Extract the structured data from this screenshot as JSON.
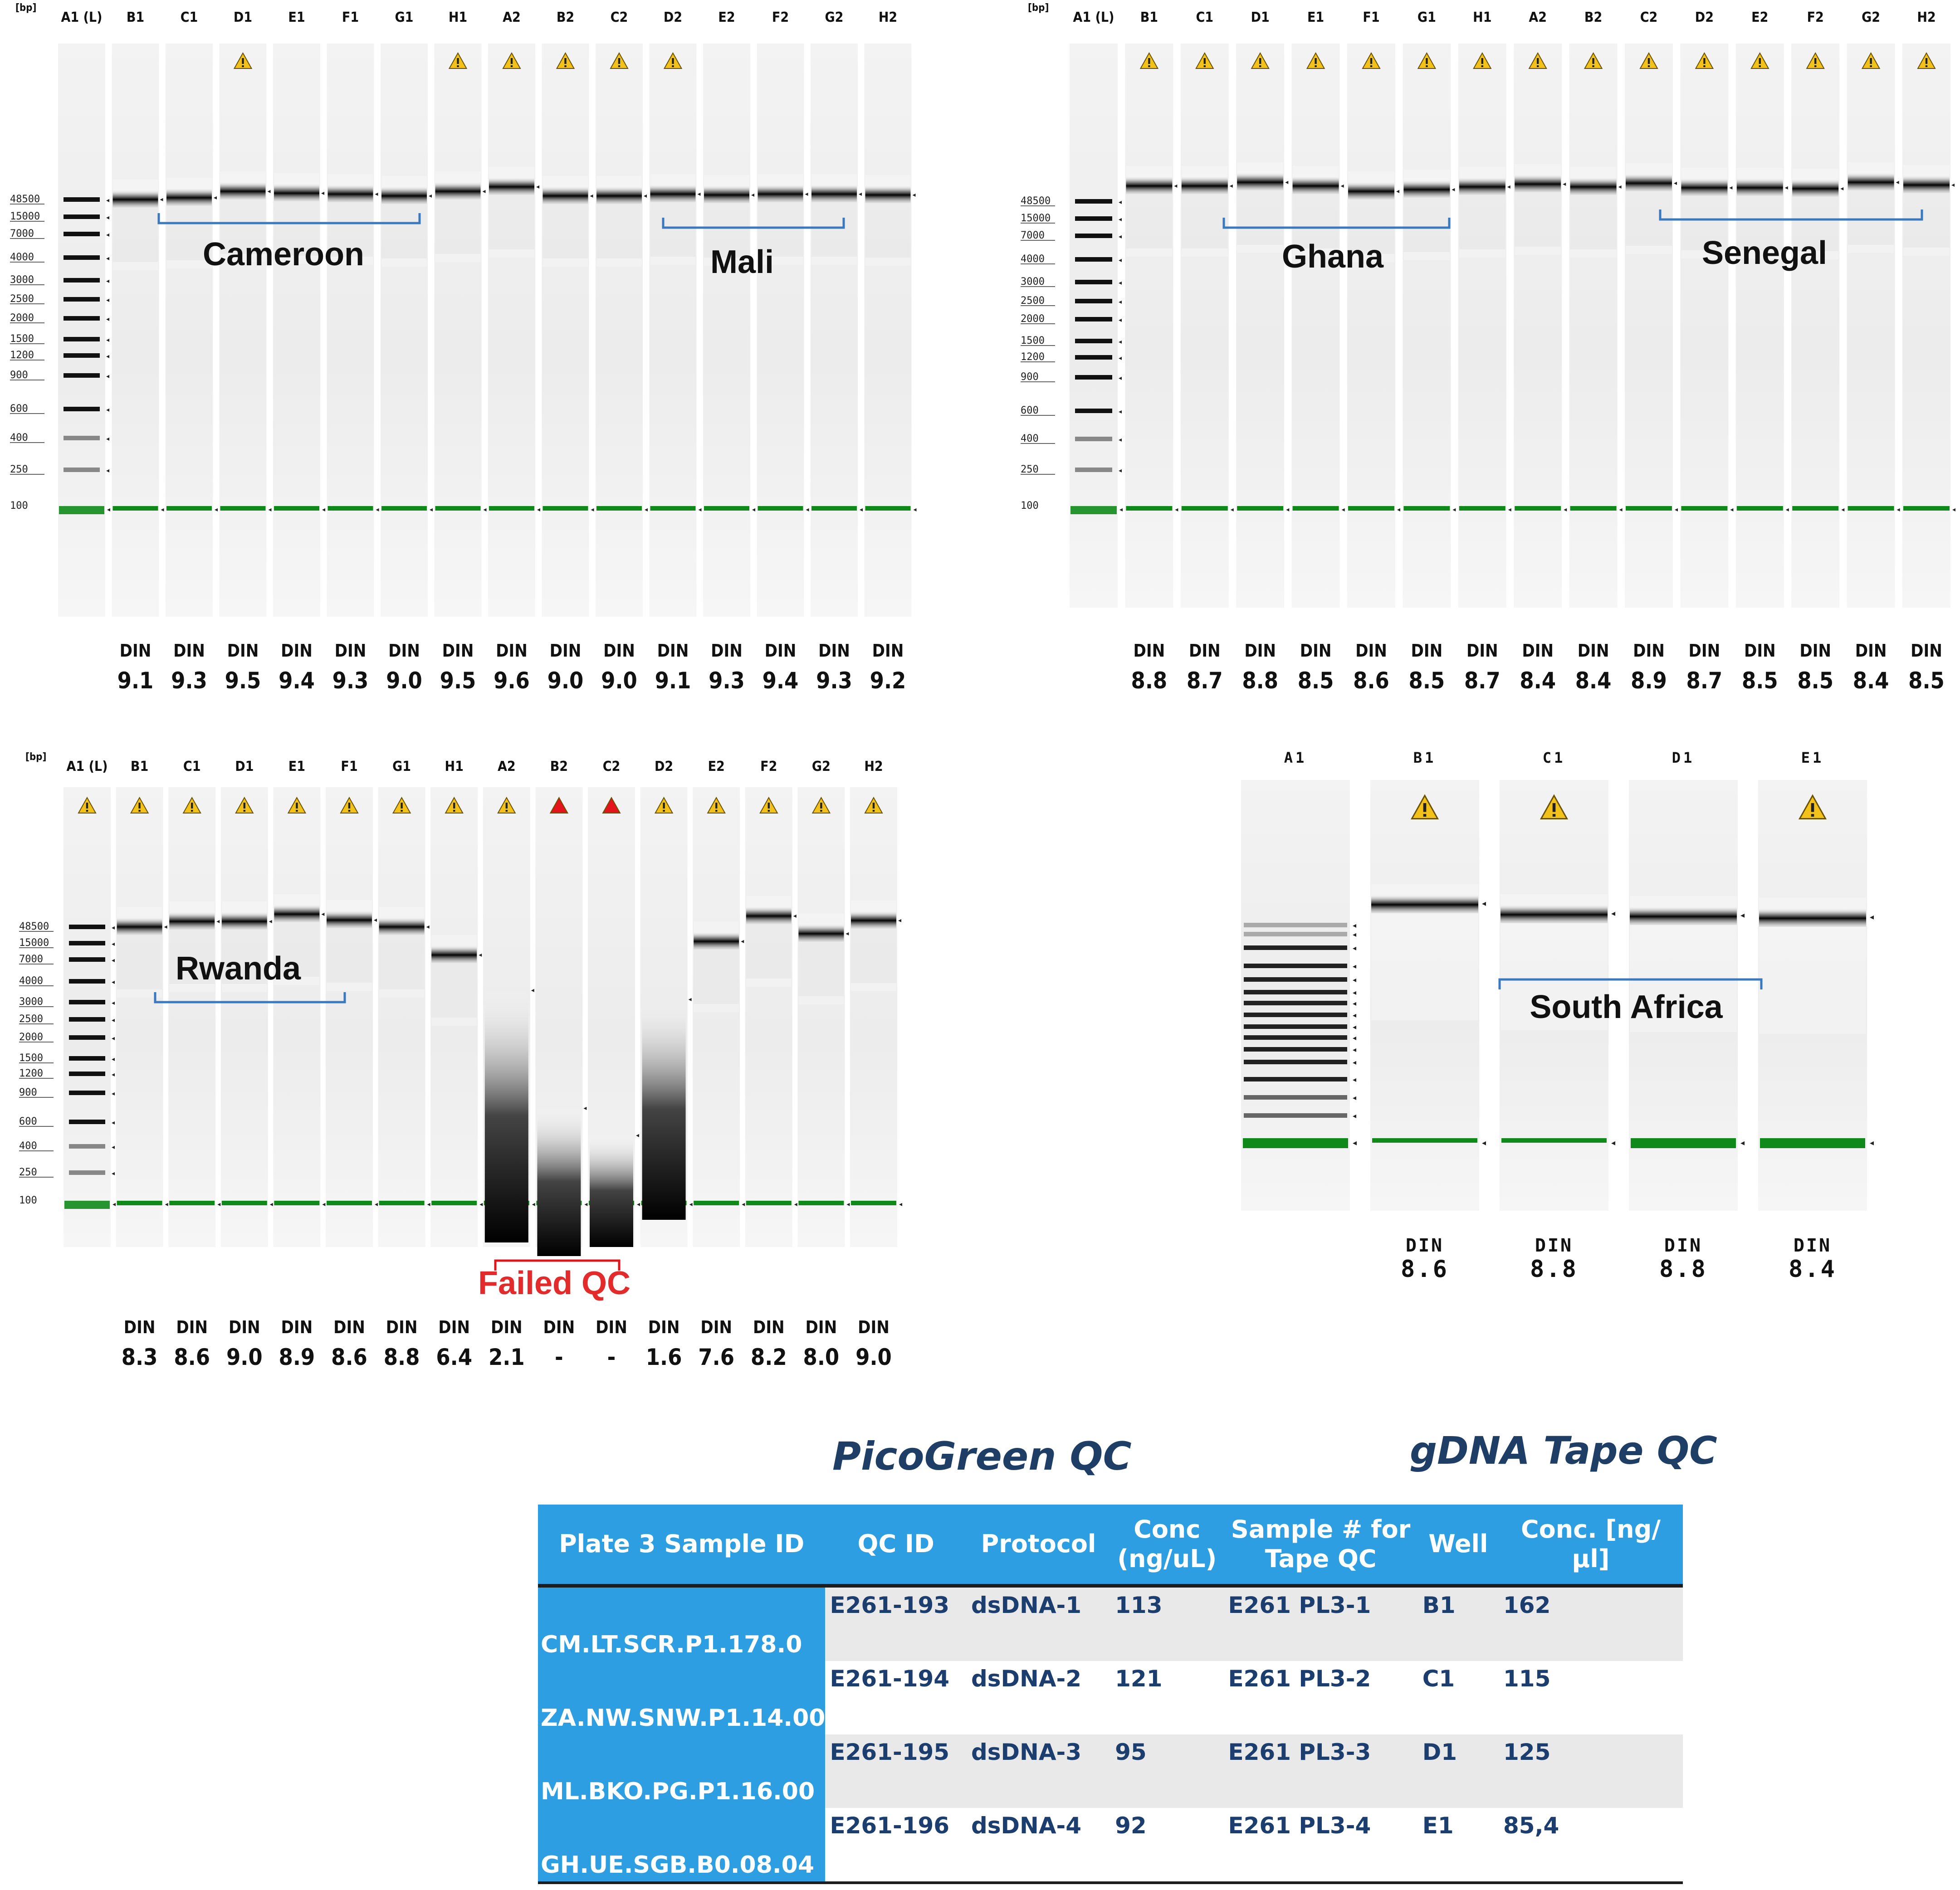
{
  "panels": [
    {
      "id": "cameroon-mali",
      "unit": "[bp]",
      "lanes": [
        "A1 (L)",
        "B1",
        "C1",
        "D1",
        "E1",
        "F1",
        "G1",
        "H1",
        "A2",
        "B2",
        "C2",
        "D2",
        "E2",
        "F2",
        "G2",
        "H2"
      ],
      "warnings": [
        "",
        "",
        "",
        "warn",
        "",
        "",
        "",
        "warn",
        "warn",
        "warn",
        "warn",
        "warn",
        "",
        "",
        "",
        ""
      ],
      "din_label": "DIN",
      "din": [
        "9.1",
        "9.3",
        "9.5",
        "9.4",
        "9.3",
        "9.0",
        "9.5",
        "9.6",
        "9.0",
        "9.0",
        "9.1",
        "9.3",
        "9.4",
        "9.3",
        "9.2"
      ],
      "ladder_labels": [
        "48500",
        "15000",
        "7000",
        "4000",
        "3000",
        "2500",
        "2000",
        "1500",
        "1200",
        "900",
        "600",
        "400",
        "250",
        "100"
      ],
      "groups": [
        {
          "label": "Cameroon",
          "color": "#111111"
        },
        {
          "label": "Mali",
          "color": "#111111"
        }
      ]
    },
    {
      "id": "ghana-senegal",
      "unit": "[bp]",
      "lanes": [
        "A1 (L)",
        "B1",
        "C1",
        "D1",
        "E1",
        "F1",
        "G1",
        "H1",
        "A2",
        "B2",
        "C2",
        "D2",
        "E2",
        "F2",
        "G2",
        "H2"
      ],
      "warnings": [
        "",
        "warn",
        "warn",
        "warn",
        "warn",
        "warn",
        "warn",
        "warn",
        "warn",
        "warn",
        "warn",
        "warn",
        "warn",
        "warn",
        "warn",
        "warn"
      ],
      "din_label": "DIN",
      "din": [
        "8.8",
        "8.7",
        "8.8",
        "8.5",
        "8.6",
        "8.5",
        "8.7",
        "8.4",
        "8.4",
        "8.9",
        "8.7",
        "8.5",
        "8.5",
        "8.4",
        "8.5"
      ],
      "ladder_labels": [
        "48500",
        "15000",
        "7000",
        "4000",
        "3000",
        "2500",
        "2000",
        "1500",
        "1200",
        "900",
        "600",
        "400",
        "250",
        "100"
      ],
      "groups": [
        {
          "label": "Ghana",
          "color": "#111111"
        },
        {
          "label": "Senegal",
          "color": "#111111"
        }
      ]
    },
    {
      "id": "rwanda",
      "unit": "[bp]",
      "lanes": [
        "A1 (L)",
        "B1",
        "C1",
        "D1",
        "E1",
        "F1",
        "G1",
        "H1",
        "A2",
        "B2",
        "C2",
        "D2",
        "E2",
        "F2",
        "G2",
        "H2"
      ],
      "warnings": [
        "warn",
        "warn",
        "warn",
        "warn",
        "warn",
        "warn",
        "warn",
        "warn",
        "warn",
        "fail",
        "fail",
        "warn",
        "warn",
        "warn",
        "warn",
        "warn"
      ],
      "din_label": "DIN",
      "din": [
        "8.3",
        "8.6",
        "9.0",
        "8.9",
        "8.6",
        "8.8",
        "6.4",
        "2.1",
        "-",
        "-",
        "1.6",
        "7.6",
        "8.2",
        "8.0",
        "9.0"
      ],
      "ladder_labels": [
        "48500",
        "15000",
        "7000",
        "4000",
        "3000",
        "2500",
        "2000",
        "1500",
        "1200",
        "900",
        "600",
        "400",
        "250",
        "100"
      ],
      "groups": [
        {
          "label": "Rwanda",
          "color": "#111111"
        },
        {
          "label": "Failed QC",
          "color": "#e32b2b"
        }
      ]
    },
    {
      "id": "south-africa",
      "lanes": [
        "A1",
        "B1",
        "C1",
        "D1",
        "E1"
      ],
      "warnings": [
        "",
        "warn",
        "warn",
        "",
        "warn"
      ],
      "din_label": "DIN",
      "din": [
        "8.6",
        "8.8",
        "8.8",
        "8.4"
      ],
      "groups": [
        {
          "label": "South Africa",
          "color": "#111111"
        }
      ]
    }
  ],
  "titles": {
    "picogreen": "PicoGreen QC",
    "tape": "gDNA Tape QC"
  },
  "table": {
    "headers": [
      "Plate 3 Sample ID",
      "QC ID",
      "Protocol",
      "Conc (ng/uL)",
      "Sample # for Tape QC",
      "Well",
      "Conc. [ng/µl]"
    ],
    "rows": [
      {
        "sample_id": "CM.LT.SCR.P1.178.0",
        "qc_id": "E261-193",
        "protocol": "dsDNA-1",
        "conc": "113",
        "tape_sample": "E261 PL3-1",
        "well": "B1",
        "tape_conc": "162"
      },
      {
        "sample_id": "ZA.NW.SNW.P1.14.00",
        "qc_id": "E261-194",
        "protocol": "dsDNA-2",
        "conc": "121",
        "tape_sample": "E261 PL3-2",
        "well": "C1",
        "tape_conc": "115"
      },
      {
        "sample_id": "ML.BKO.PG.P1.16.00",
        "qc_id": "E261-195",
        "protocol": "dsDNA-3",
        "conc": "95",
        "tape_sample": "E261 PL3-3",
        "well": "D1",
        "tape_conc": "125"
      },
      {
        "sample_id": "GH.UE.SGB.B0.08.04",
        "qc_id": "E261-196",
        "protocol": "dsDNA-4",
        "conc": "92",
        "tape_sample": "E261 PL3-4",
        "well": "E1",
        "tape_conc": "85,4"
      }
    ]
  },
  "colors": {
    "marker_green": "#0f8a1a",
    "warning_yellow": "#f2c21b",
    "fail_red": "#e3141c",
    "bracket_blue": "#3a78c0",
    "table_header": "#2e9ee2",
    "table_text": "#1b3e6e"
  }
}
